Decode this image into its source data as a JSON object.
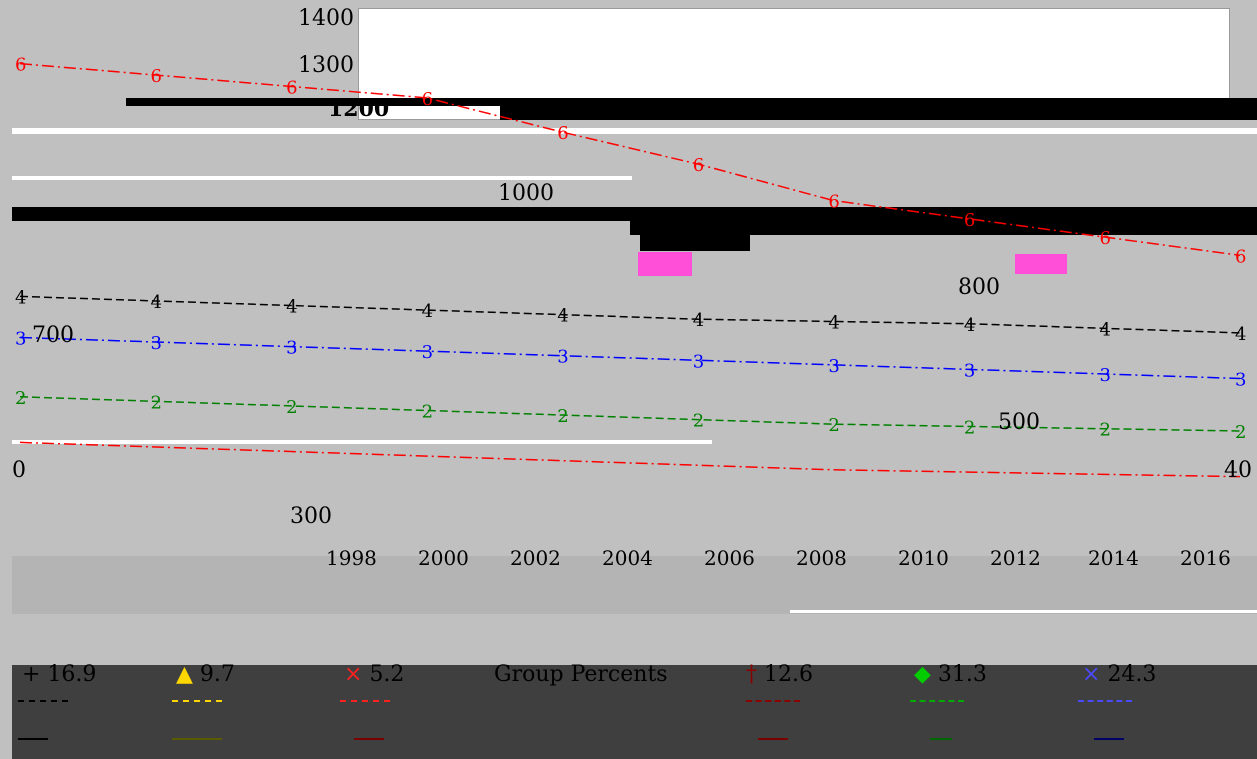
{
  "chart_data": {
    "type": "line",
    "title": "",
    "xlabel": "",
    "ylabel": "",
    "y_ticks_visible": [
      "1400",
      "1300",
      "1200",
      "1000",
      "800",
      "700",
      "500",
      "300"
    ],
    "x_ticks": [
      "1998",
      "2000",
      "2002",
      "2004",
      "2006",
      "2008",
      "2010",
      "2012",
      "2014",
      "2016"
    ],
    "axis_edge_labels": {
      "left": "0",
      "right": "40"
    },
    "ylim": [
      300,
      1400
    ],
    "series": [
      {
        "marker": "6",
        "color": "#ff0000",
        "x": [
          1998,
          2000,
          2002,
          2004,
          2006,
          2008,
          2010,
          2012,
          2014,
          2016
        ],
        "y": [
          1300,
          1275,
          1250,
          1225,
          1150,
          1080,
          1000,
          960,
          920,
          880
        ]
      },
      {
        "marker": "4",
        "color": "#000000",
        "x": [
          1998,
          2000,
          2002,
          2004,
          2006,
          2008,
          2010,
          2012,
          2014,
          2016
        ],
        "y": [
          790,
          780,
          770,
          760,
          750,
          740,
          735,
          730,
          720,
          710
        ]
      },
      {
        "marker": "3",
        "color": "#0000ff",
        "x": [
          1998,
          2000,
          2002,
          2004,
          2006,
          2008,
          2010,
          2012,
          2014,
          2016
        ],
        "y": [
          700,
          690,
          680,
          670,
          660,
          650,
          640,
          630,
          620,
          610
        ]
      },
      {
        "marker": "2",
        "color": "#008000",
        "x": [
          1998,
          2000,
          2002,
          2004,
          2006,
          2008,
          2010,
          2012,
          2014,
          2016
        ],
        "y": [
          570,
          560,
          550,
          540,
          530,
          520,
          510,
          505,
          500,
          495
        ]
      },
      {
        "marker": "",
        "color": "#ff0000",
        "x": [
          1998,
          2000,
          2002,
          2004,
          2006,
          2008,
          2010,
          2012,
          2014,
          2016
        ],
        "y": [
          470,
          460,
          450,
          440,
          430,
          420,
          410,
          405,
          400,
          395
        ]
      }
    ],
    "legend": {
      "title": "Group Percents",
      "entries": [
        {
          "marker": "+",
          "value": "16.9",
          "color": "#000000"
        },
        {
          "marker": "▲",
          "value": "9.7",
          "color": "#ffd700"
        },
        {
          "marker": "×",
          "value": "5.2",
          "color": "#ff0000"
        },
        {
          "marker": "†",
          "value": "12.6",
          "color": "#8b0000"
        },
        {
          "marker": "◆",
          "value": "31.3",
          "color": "#00aa00"
        },
        {
          "marker": "×",
          "value": "24.3",
          "color": "#0000ff"
        }
      ]
    }
  }
}
